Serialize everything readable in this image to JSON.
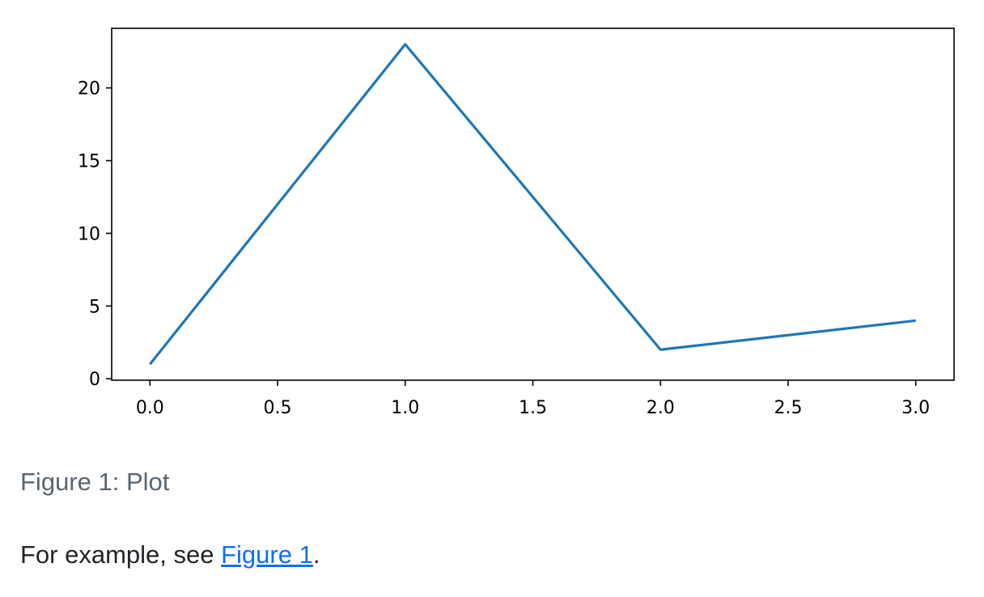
{
  "chart_data": {
    "type": "line",
    "title": "",
    "xlabel": "",
    "ylabel": "",
    "x": [
      0,
      1,
      2,
      3
    ],
    "series": [
      {
        "values": [
          1,
          23,
          2,
          4
        ],
        "color": "#1f77b4"
      }
    ],
    "xlim": [
      -0.15,
      3.15
    ],
    "ylim": [
      -0.1,
      24.1
    ],
    "xticks": [
      0.0,
      0.5,
      1.0,
      1.5,
      2.0,
      2.5,
      3.0
    ],
    "xtick_labels": [
      "0.0",
      "0.5",
      "1.0",
      "1.5",
      "2.0",
      "2.5",
      "3.0"
    ],
    "yticks": [
      0,
      5,
      10,
      15,
      20
    ],
    "ytick_labels": [
      "0",
      "5",
      "10",
      "15",
      "20"
    ],
    "grid": false,
    "legend": "none"
  },
  "caption": "Figure 1: Plot",
  "paragraph": {
    "before": "For example, see ",
    "link": "Figure 1",
    "after": "."
  },
  "link_color": "#0d6efd"
}
